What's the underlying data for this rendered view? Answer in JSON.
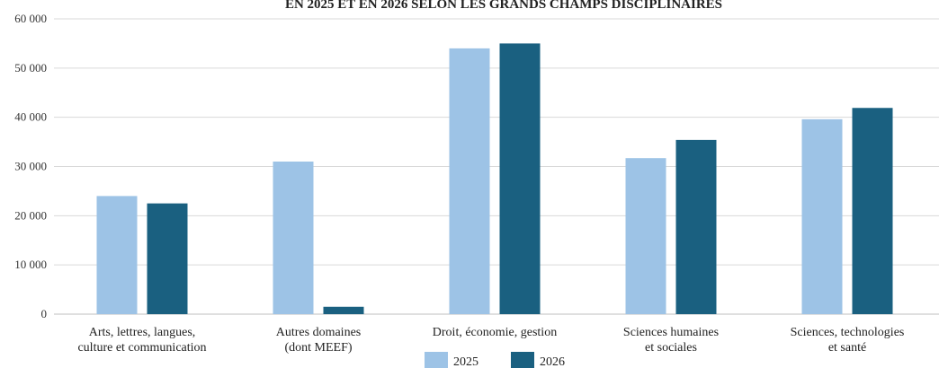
{
  "chart_data": {
    "type": "bar",
    "title": "EN 2025 ET EN 2026 SELON LES GRANDS CHAMPS DISCIPLINAIRES",
    "categories": [
      [
        "Arts, lettres, langues,",
        "culture et communication"
      ],
      [
        "Autres domaines",
        "(dont MEEF)"
      ],
      [
        "Droit, économie, gestion"
      ],
      [
        "Sciences humaines",
        "et sociales"
      ],
      [
        "Sciences, technologies",
        "et santé"
      ]
    ],
    "series": [
      {
        "name": "2025",
        "color": "#9dc3e6",
        "values": [
          24000,
          31000,
          54000,
          31700,
          39600
        ]
      },
      {
        "name": "2026",
        "color": "#1a6080",
        "values": [
          22500,
          1500,
          55000,
          35400,
          41900
        ]
      }
    ],
    "ylim": [
      0,
      60000
    ],
    "yticks": [
      "0",
      "10 000",
      "20 000",
      "30 000",
      "40 000",
      "50 000",
      "60 000"
    ],
    "ytick_values": [
      0,
      10000,
      20000,
      30000,
      40000,
      50000,
      60000
    ],
    "grid": true,
    "legend_position": "bottom"
  }
}
